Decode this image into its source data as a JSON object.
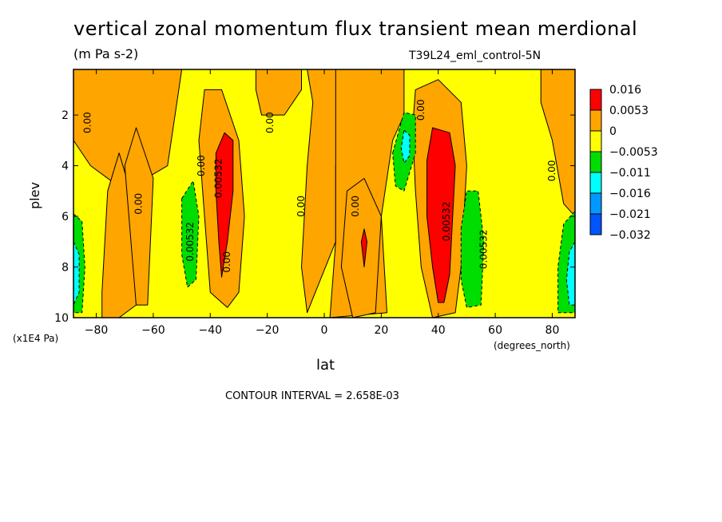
{
  "chart_data": {
    "type": "contour",
    "title": "vertical zonal momentum flux transient mean merdional",
    "units": "(m Pa s-2)",
    "run_label": "T39L24_eml_control-5N",
    "xlabel": "lat",
    "xlabel_units": "(degrees_north)",
    "ylabel": "plev",
    "ylabel_units": "(x1E4 Pa)",
    "xlim": [
      -88,
      88
    ],
    "ylim": [
      10,
      0.2
    ],
    "xticks": [
      -80,
      -60,
      -40,
      -20,
      0,
      20,
      40,
      60,
      80
    ],
    "xtick_labels": [
      "−80",
      "−60",
      "−40",
      "−20",
      "0",
      "20",
      "40",
      "60",
      "80"
    ],
    "yticks": [
      2,
      4,
      6,
      8,
      10
    ],
    "ytick_labels": [
      "2",
      "4",
      "6",
      "8",
      "10"
    ],
    "contour_interval_text": "CONTOUR INTERVAL = 2.658E-03",
    "legend": {
      "labels": [
        "0.016",
        "0.0053",
        "0",
        "−0.0053",
        "−0.011",
        "−0.016",
        "−0.021",
        "−0.032"
      ],
      "colors": [
        "#ff0000",
        "#ffa500",
        "#ffff00",
        "#00dd00",
        "#00ffff",
        "#0099ff",
        "#0055ff"
      ]
    },
    "contour_labels": [
      {
        "text": "0.00",
        "lat": -82,
        "plev": 2.3
      },
      {
        "text": "0.00",
        "lat": -64,
        "plev": 5.5
      },
      {
        "text": "0.00",
        "lat": -42,
        "plev": 4.0
      },
      {
        "text": "0.00532",
        "lat": -36,
        "plev": 4.5
      },
      {
        "text": "0.00",
        "lat": -33,
        "plev": 7.8
      },
      {
        "text": "0.00532",
        "lat": -46,
        "plev": 7.0
      },
      {
        "text": "0.00",
        "lat": -18,
        "plev": 2.3
      },
      {
        "text": "0.00",
        "lat": -7,
        "plev": 5.6
      },
      {
        "text": "0.00",
        "lat": 12,
        "plev": 5.6
      },
      {
        "text": "0.00",
        "lat": 35,
        "plev": 1.8
      },
      {
        "text": "0.00532",
        "lat": 44,
        "plev": 6.2
      },
      {
        "text": "0.00532",
        "lat": 57,
        "plev": 7.3
      },
      {
        "text": "0.00",
        "lat": 81,
        "plev": 4.2
      }
    ],
    "regions": [
      {
        "level": "0.0053",
        "points": [
          [
            -88,
            0.2
          ],
          [
            -50,
            0.2
          ],
          [
            -55,
            4
          ],
          [
            -70,
            5
          ],
          [
            -82,
            4
          ],
          [
            -88,
            3
          ]
        ]
      },
      {
        "level": "0.0053",
        "points": [
          [
            -78,
            9
          ],
          [
            -76,
            5
          ],
          [
            -72,
            3.5
          ],
          [
            -68,
            5
          ],
          [
            -66,
            9.5
          ],
          [
            -72,
            10
          ],
          [
            -78,
            10
          ]
        ]
      },
      {
        "level": "0.0053",
        "points": [
          [
            -70,
            4
          ],
          [
            -66,
            2.5
          ],
          [
            -60,
            4.5
          ],
          [
            -62,
            9.5
          ],
          [
            -66,
            9.5
          ]
        ]
      },
      {
        "level": "0.0053",
        "points": [
          [
            -42,
            1
          ],
          [
            -36,
            1
          ],
          [
            -30,
            3
          ],
          [
            -28,
            6
          ],
          [
            -30,
            9
          ],
          [
            -34,
            9.6
          ],
          [
            -40,
            9
          ],
          [
            -42,
            6
          ],
          [
            -44,
            3
          ]
        ]
      },
      {
        "level": "0.0053",
        "points": [
          [
            -24,
            0.2
          ],
          [
            -8,
            0.2
          ],
          [
            -8,
            1
          ],
          [
            -14,
            2
          ],
          [
            -22,
            2
          ],
          [
            -24,
            1
          ]
        ]
      },
      {
        "level": "0.0053",
        "points": [
          [
            -6,
            0.2
          ],
          [
            14,
            0.2
          ],
          [
            12,
            1.2
          ],
          [
            6,
            2.5
          ],
          [
            4,
            4
          ],
          [
            4,
            7
          ],
          [
            -6,
            9.8
          ],
          [
            -8,
            8
          ],
          [
            -6,
            4
          ],
          [
            -4,
            1.5
          ]
        ]
      },
      {
        "level": "0.0053",
        "points": [
          [
            4,
            0.2
          ],
          [
            28,
            0.2
          ],
          [
            28,
            2
          ],
          [
            24,
            3
          ],
          [
            20,
            6
          ],
          [
            22,
            9.8
          ],
          [
            2,
            10
          ],
          [
            4,
            7
          ]
        ]
      },
      {
        "level": "0.0053",
        "points": [
          [
            8,
            5
          ],
          [
            14,
            4.5
          ],
          [
            20,
            6
          ],
          [
            18,
            9.8
          ],
          [
            10,
            10
          ],
          [
            6,
            8
          ]
        ]
      },
      {
        "level": "0.0053",
        "points": [
          [
            32,
            1
          ],
          [
            40,
            0.6
          ],
          [
            48,
            1.5
          ],
          [
            50,
            4
          ],
          [
            48,
            8
          ],
          [
            46,
            9.8
          ],
          [
            38,
            10
          ],
          [
            34,
            8
          ],
          [
            32,
            5
          ],
          [
            31,
            2.5
          ]
        ]
      },
      {
        "level": "0.0053",
        "points": [
          [
            76,
            0.2
          ],
          [
            88,
            0.2
          ],
          [
            88,
            6
          ],
          [
            84,
            5.5
          ],
          [
            80,
            3
          ],
          [
            76,
            1.5
          ]
        ]
      },
      {
        "level": "-0.0053",
        "points": [
          [
            -50,
            5.3
          ],
          [
            -46,
            4.6
          ],
          [
            -44,
            6
          ],
          [
            -45,
            8.5
          ],
          [
            -48,
            8.8
          ],
          [
            -50,
            7.5
          ]
        ]
      },
      {
        "level": "-0.0053",
        "points": [
          [
            24,
            3.5
          ],
          [
            28,
            1.9
          ],
          [
            32,
            2
          ],
          [
            32,
            3.5
          ],
          [
            28,
            5
          ],
          [
            25,
            4.8
          ]
        ]
      },
      {
        "level": "-0.0053",
        "points": [
          [
            48,
            6.5
          ],
          [
            50,
            5
          ],
          [
            54,
            5
          ],
          [
            56,
            7
          ],
          [
            55,
            9.5
          ],
          [
            50,
            9.6
          ],
          [
            48,
            8.5
          ]
        ]
      },
      {
        "level": "-0.0053",
        "points": [
          [
            -88,
            5.9
          ],
          [
            -85,
            6.2
          ],
          [
            -84,
            8
          ],
          [
            -85,
            9.8
          ],
          [
            -88,
            9.8
          ]
        ]
      },
      {
        "level": "-0.0053",
        "points": [
          [
            88,
            5.8
          ],
          [
            84,
            6.3
          ],
          [
            82,
            8
          ],
          [
            82,
            9.8
          ],
          [
            88,
            9.8
          ]
        ]
      },
      {
        "level": "-0.011",
        "points": [
          [
            28,
            2.6
          ],
          [
            30,
            2.8
          ],
          [
            30,
            3.6
          ],
          [
            28,
            3.9
          ],
          [
            27,
            3.3
          ]
        ]
      },
      {
        "level": "-0.011",
        "points": [
          [
            -88,
            7
          ],
          [
            -86,
            7.5
          ],
          [
            -86,
            9
          ],
          [
            -88,
            9.5
          ]
        ]
      },
      {
        "level": "-0.011",
        "points": [
          [
            88,
            7
          ],
          [
            86,
            7.4
          ],
          [
            85,
            8.5
          ],
          [
            86,
            9.5
          ],
          [
            88,
            9.5
          ]
        ]
      },
      {
        "level": "0.016",
        "points": [
          [
            -38,
            3.5
          ],
          [
            -35,
            2.7
          ],
          [
            -32,
            3
          ],
          [
            -32,
            5
          ],
          [
            -34,
            7
          ],
          [
            -36,
            8.4
          ],
          [
            -37,
            7
          ],
          [
            -38,
            5
          ]
        ]
      },
      {
        "level": "0.016",
        "points": [
          [
            36,
            3.8
          ],
          [
            38,
            2.5
          ],
          [
            44,
            2.7
          ],
          [
            46,
            4
          ],
          [
            44,
            8.3
          ],
          [
            42,
            9.4
          ],
          [
            40,
            9.4
          ],
          [
            38,
            8
          ],
          [
            36,
            6
          ]
        ]
      },
      {
        "level": "0.016",
        "points": [
          [
            13,
            7
          ],
          [
            14,
            6.5
          ],
          [
            15,
            7
          ],
          [
            14,
            8
          ]
        ]
      }
    ]
  }
}
